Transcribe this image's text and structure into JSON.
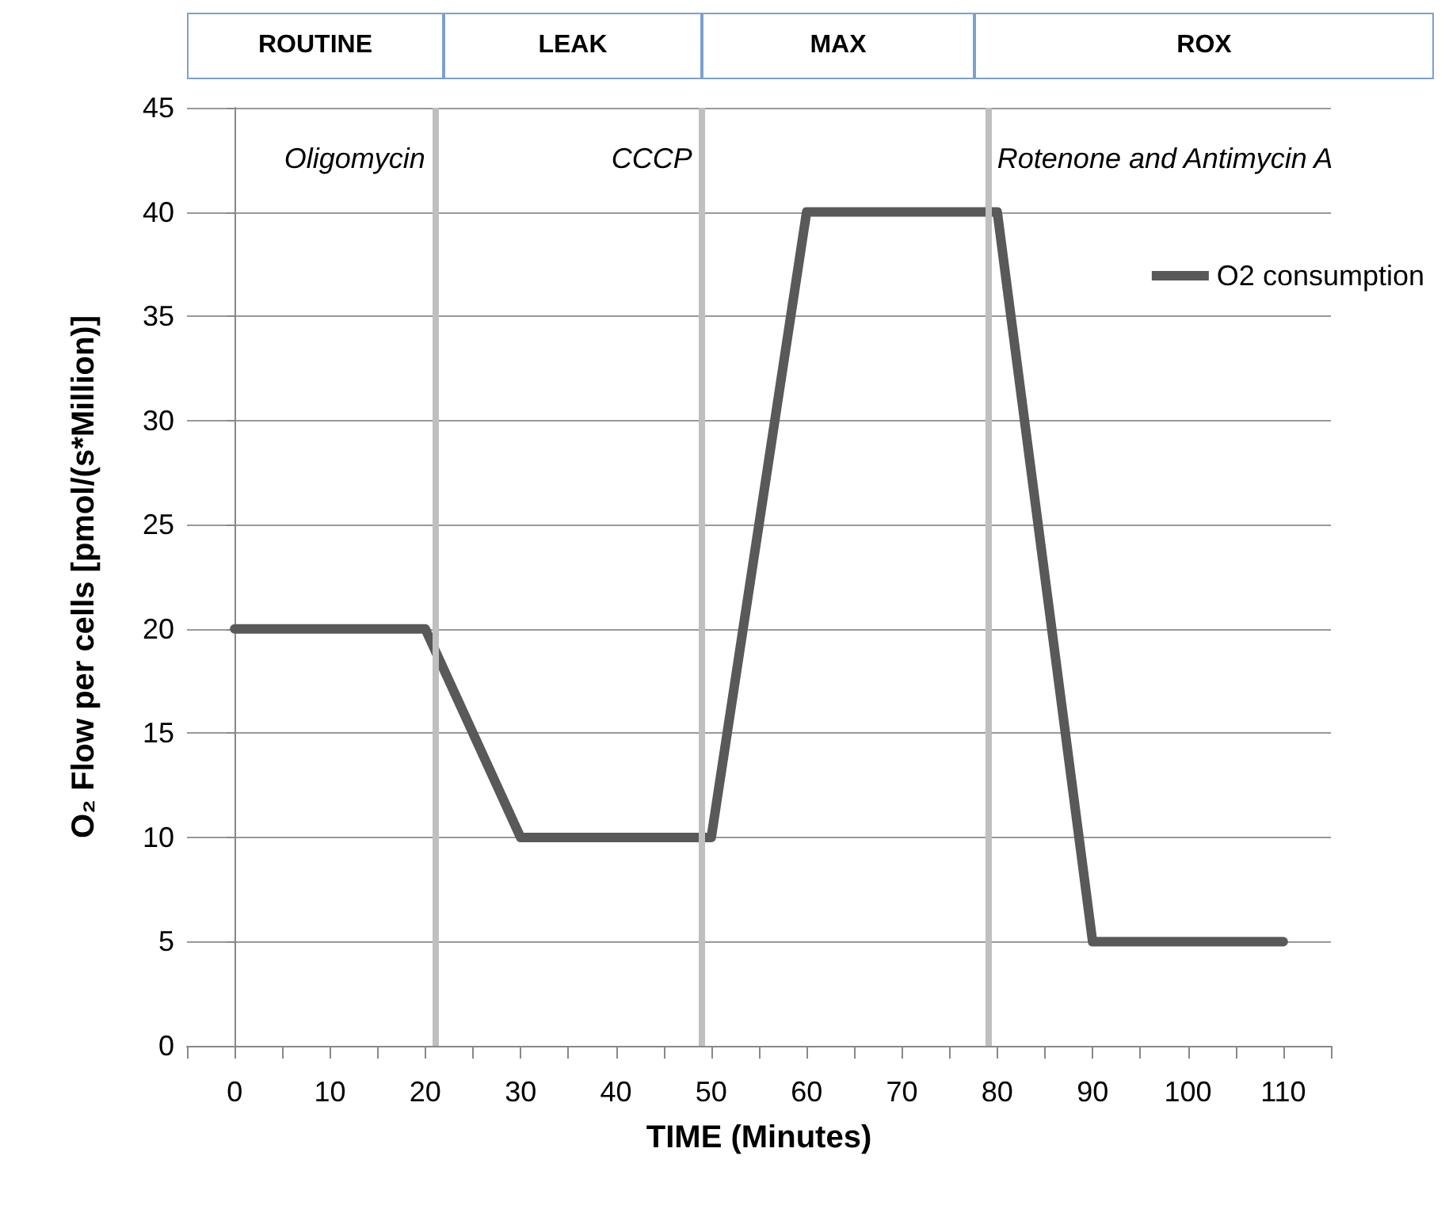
{
  "chart_data": {
    "type": "line",
    "annotations": [
      "ROUTINE",
      "LEAK",
      "MAX",
      "ROX"
    ],
    "xlabel": "TIME (Minutes)",
    "ylabel": "O₂ Flow per cells [pmol/(s*Million)]",
    "x": [
      0,
      10,
      20,
      30,
      40,
      50,
      60,
      70,
      80,
      90,
      100,
      110
    ],
    "series": [
      {
        "name": "O2 consumption",
        "color": "#595959",
        "values": [
          20,
          20,
          20,
          10,
          10,
          10,
          40,
          40,
          40,
          5,
          5,
          5
        ]
      }
    ],
    "xlim": [
      -5,
      115
    ],
    "xticks": [
      {
        "value": -5,
        "label": null
      },
      0,
      {
        "value": 5,
        "label": null
      },
      10,
      {
        "value": 15,
        "label": null
      },
      20,
      {
        "value": 25,
        "label": null
      },
      30,
      {
        "value": 35,
        "label": null
      },
      40,
      {
        "value": 45,
        "label": null
      },
      50,
      {
        "value": 55,
        "label": null
      },
      60,
      {
        "value": 65,
        "label": null
      },
      70,
      {
        "value": 75,
        "label": null
      },
      80,
      {
        "value": 85,
        "label": null
      },
      90,
      {
        "value": 95,
        "label": null
      },
      100,
      {
        "value": 105,
        "label": null
      },
      110,
      {
        "value": 115,
        "label": null
      }
    ],
    "ylim": [
      0,
      45
    ],
    "yticks": [
      0,
      5,
      10,
      15,
      20,
      25,
      30,
      35,
      40,
      45
    ],
    "ref_lines": [
      {
        "axis": "x",
        "value": 21,
        "label": "Oligomycin",
        "color": "#bfbfbf"
      },
      {
        "axis": "x",
        "value": 49,
        "label": "CCCP",
        "color": "#bfbfbf"
      },
      {
        "axis": "x",
        "value": 79,
        "label": "Rotenone and Antimycin A",
        "color": "#bfbfbf"
      }
    ],
    "grid": "y",
    "legend": "right",
    "marker": "none",
    "line_style": "solid"
  }
}
